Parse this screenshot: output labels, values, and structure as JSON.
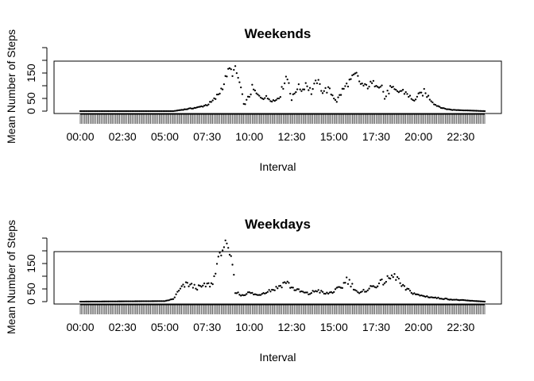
{
  "chart_data": [
    {
      "type": "scatter",
      "title": "Weekends",
      "xlabel": "Interval",
      "ylabel": "Mean Number of Steps",
      "ylim": [
        0,
        250
      ],
      "yticks": [
        "0",
        "50",
        "150"
      ],
      "xtick_labels": [
        "00:00",
        "02:30",
        "05:00",
        "07:30",
        "10:00",
        "12:30",
        "15:00",
        "17:30",
        "20:00",
        "22:30"
      ],
      "points_per_day": 288,
      "interval_minutes": 5,
      "anchors": [
        [
          "00:00",
          0
        ],
        [
          "05:30",
          0
        ],
        [
          "06:00",
          5
        ],
        [
          "06:30",
          10
        ],
        [
          "07:00",
          15
        ],
        [
          "07:30",
          25
        ],
        [
          "07:45",
          35
        ],
        [
          "08:00",
          50
        ],
        [
          "08:15",
          75
        ],
        [
          "08:30",
          110
        ],
        [
          "08:40",
          145
        ],
        [
          "08:50",
          165
        ],
        [
          "09:00",
          150
        ],
        [
          "09:10",
          165
        ],
        [
          "09:20",
          130
        ],
        [
          "09:30",
          90
        ],
        [
          "09:40",
          25
        ],
        [
          "09:50",
          40
        ],
        [
          "10:00",
          60
        ],
        [
          "10:10",
          90
        ],
        [
          "10:20",
          75
        ],
        [
          "10:30",
          60
        ],
        [
          "10:50",
          55
        ],
        [
          "11:10",
          50
        ],
        [
          "11:30",
          40
        ],
        [
          "11:50",
          65
        ],
        [
          "12:10",
          135
        ],
        [
          "12:20",
          115
        ],
        [
          "12:30",
          45
        ],
        [
          "12:40",
          70
        ],
        [
          "12:50",
          95
        ],
        [
          "13:10",
          85
        ],
        [
          "13:20",
          110
        ],
        [
          "13:40",
          75
        ],
        [
          "14:00",
          120
        ],
        [
          "14:20",
          80
        ],
        [
          "14:40",
          85
        ],
        [
          "15:00",
          55
        ],
        [
          "15:10",
          40
        ],
        [
          "15:30",
          80
        ],
        [
          "15:50",
          110
        ],
        [
          "16:10",
          135
        ],
        [
          "16:20",
          145
        ],
        [
          "16:30",
          115
        ],
        [
          "16:50",
          95
        ],
        [
          "17:10",
          105
        ],
        [
          "17:30",
          110
        ],
        [
          "17:50",
          100
        ],
        [
          "18:00",
          50
        ],
        [
          "18:20",
          90
        ],
        [
          "18:40",
          75
        ],
        [
          "19:00",
          80
        ],
        [
          "19:20",
          70
        ],
        [
          "19:40",
          40
        ],
        [
          "20:00",
          60
        ],
        [
          "20:20",
          75
        ],
        [
          "20:40",
          50
        ],
        [
          "21:00",
          25
        ],
        [
          "21:30",
          10
        ],
        [
          "22:00",
          5
        ],
        [
          "23:55",
          0
        ]
      ]
    },
    {
      "type": "scatter",
      "title": "Weekdays",
      "xlabel": "Interval",
      "ylabel": "Mean Number of Steps",
      "ylim": [
        0,
        250
      ],
      "yticks": [
        "0",
        "50",
        "150"
      ],
      "xtick_labels": [
        "00:00",
        "02:30",
        "05:00",
        "07:30",
        "10:00",
        "12:30",
        "15:00",
        "17:30",
        "20:00",
        "22:30"
      ],
      "points_per_day": 288,
      "interval_minutes": 5,
      "anchors": [
        [
          "00:00",
          0
        ],
        [
          "05:00",
          2
        ],
        [
          "05:30",
          10
        ],
        [
          "05:45",
          35
        ],
        [
          "06:00",
          55
        ],
        [
          "06:20",
          70
        ],
        [
          "06:40",
          60
        ],
        [
          "07:00",
          55
        ],
        [
          "07:30",
          65
        ],
        [
          "07:50",
          70
        ],
        [
          "08:05",
          150
        ],
        [
          "08:20",
          195
        ],
        [
          "08:35",
          230
        ],
        [
          "08:45",
          200
        ],
        [
          "09:00",
          150
        ],
        [
          "09:10",
          40
        ],
        [
          "09:30",
          25
        ],
        [
          "10:00",
          35
        ],
        [
          "10:30",
          25
        ],
        [
          "11:00",
          40
        ],
        [
          "11:30",
          50
        ],
        [
          "12:00",
          70
        ],
        [
          "12:10",
          80
        ],
        [
          "12:30",
          55
        ],
        [
          "13:00",
          40
        ],
        [
          "13:30",
          30
        ],
        [
          "14:00",
          45
        ],
        [
          "14:30",
          30
        ],
        [
          "15:00",
          40
        ],
        [
          "15:30",
          60
        ],
        [
          "15:45",
          90
        ],
        [
          "16:00",
          70
        ],
        [
          "16:30",
          30
        ],
        [
          "17:00",
          50
        ],
        [
          "17:30",
          65
        ],
        [
          "18:00",
          80
        ],
        [
          "18:30",
          100
        ],
        [
          "18:45",
          95
        ],
        [
          "19:00",
          60
        ],
        [
          "19:30",
          40
        ],
        [
          "20:00",
          25
        ],
        [
          "20:30",
          20
        ],
        [
          "21:00",
          15
        ],
        [
          "22:00",
          8
        ],
        [
          "23:55",
          0
        ]
      ]
    }
  ]
}
